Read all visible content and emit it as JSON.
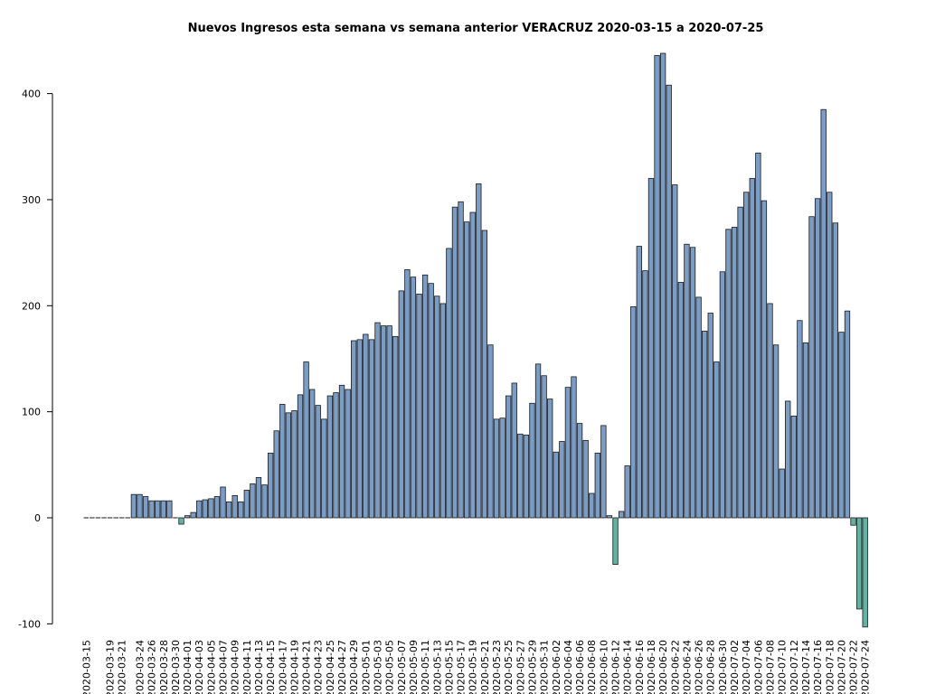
{
  "chart_data": {
    "type": "bar",
    "title": "Nuevos Ingresos esta semana vs semana anterior VERACRUZ 2020-03-15 a 2020-07-25",
    "xlabel": "",
    "ylabel": "",
    "ylim": [
      -105,
      440
    ],
    "y_ticks": [
      -100,
      0,
      100,
      200,
      300,
      400
    ],
    "y_tick_labels": [
      "-100",
      "0",
      "100",
      "200",
      "300",
      "400"
    ],
    "grid": false,
    "legend": "none",
    "colors": {
      "positive": "#7b9cc4",
      "negative": "#66b2a2",
      "border": "#1a1a1a",
      "axis": "#000000"
    },
    "start_date": "2020-03-15",
    "x_tick_labels": [
      "2020-03-15",
      "2020-03-19",
      "2020-03-21",
      "2020-03-24",
      "2020-03-26",
      "2020-03-28",
      "2020-03-30",
      "2020-04-01",
      "2020-04-03",
      "2020-04-05",
      "2020-04-07",
      "2020-04-09",
      "2020-04-11",
      "2020-04-13",
      "2020-04-15",
      "2020-04-17",
      "2020-04-19",
      "2020-04-21",
      "2020-04-23",
      "2020-04-25",
      "2020-04-27",
      "2020-04-29",
      "2020-05-01",
      "2020-05-03",
      "2020-05-05",
      "2020-05-07",
      "2020-05-09",
      "2020-05-11",
      "2020-05-13",
      "2020-05-15",
      "2020-05-17",
      "2020-05-19",
      "2020-05-21",
      "2020-05-23",
      "2020-05-25",
      "2020-05-27",
      "2020-05-29",
      "2020-05-31",
      "2020-06-02",
      "2020-06-04",
      "2020-06-06",
      "2020-06-08",
      "2020-06-10",
      "2020-06-12",
      "2020-06-14",
      "2020-06-16",
      "2020-06-18",
      "2020-06-20",
      "2020-06-22",
      "2020-06-24",
      "2020-06-26",
      "2020-06-28",
      "2020-06-30",
      "2020-07-02",
      "2020-07-04",
      "2020-07-06",
      "2020-07-08",
      "2020-07-10",
      "2020-07-12",
      "2020-07-14",
      "2020-07-16",
      "2020-07-18",
      "2020-07-20",
      "2020-07-22",
      "2020-07-24"
    ],
    "values": [
      0,
      0,
      0,
      0,
      0,
      0,
      0,
      0,
      22,
      22,
      20,
      16,
      16,
      16,
      16,
      0,
      -6,
      2,
      5,
      16,
      17,
      18,
      20,
      29,
      15,
      21,
      15,
      26,
      32,
      38,
      31,
      61,
      82,
      107,
      99,
      101,
      116,
      147,
      121,
      106,
      93,
      115,
      118,
      125,
      121,
      167,
      168,
      173,
      168,
      184,
      181,
      181,
      171,
      214,
      234,
      227,
      211,
      229,
      221,
      209,
      202,
      254,
      293,
      298,
      279,
      288,
      315,
      271,
      163,
      93,
      94,
      115,
      127,
      79,
      78,
      108,
      145,
      134,
      112,
      62,
      72,
      123,
      133,
      89,
      73,
      23,
      61,
      87,
      2,
      -44,
      6,
      49,
      199,
      256,
      233,
      320,
      436,
      438,
      408,
      314,
      222,
      258,
      255,
      208,
      176,
      193,
      147,
      232,
      272,
      274,
      293,
      307,
      320,
      344,
      299,
      202,
      163,
      46,
      110,
      96,
      186,
      165,
      284,
      301,
      385,
      307,
      278,
      175,
      195,
      -7,
      -86,
      -103
    ]
  }
}
